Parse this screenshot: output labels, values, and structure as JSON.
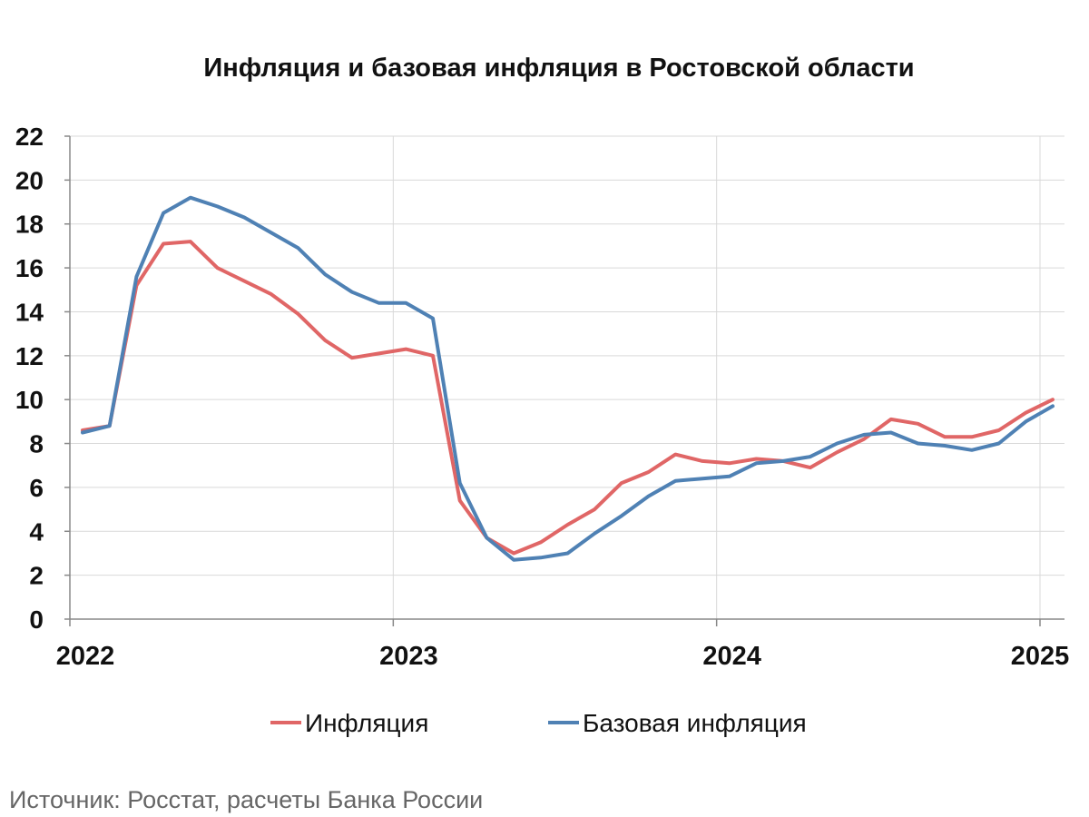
{
  "chart_data": {
    "type": "line",
    "title": "Инфляция и базовая инфляция в Ростовской области",
    "xlabel": "",
    "ylabel": "",
    "ylim": [
      0,
      22
    ],
    "yticks": [
      "0",
      "2",
      "4",
      "6",
      "8",
      "10",
      "12",
      "14",
      "16",
      "18",
      "20",
      "22"
    ],
    "xticks": [
      "2022",
      "2023",
      "2024",
      "2025"
    ],
    "x": [
      "2022-01",
      "2022-02",
      "2022-03",
      "2022-04",
      "2022-05",
      "2022-06",
      "2022-07",
      "2022-08",
      "2022-09",
      "2022-10",
      "2022-11",
      "2022-12",
      "2023-01",
      "2023-02",
      "2023-03",
      "2023-04",
      "2023-05",
      "2023-06",
      "2023-07",
      "2023-08",
      "2023-09",
      "2023-10",
      "2023-11",
      "2023-12",
      "2024-01",
      "2024-02",
      "2024-03",
      "2024-04",
      "2024-05",
      "2024-06",
      "2024-07",
      "2024-08",
      "2024-09",
      "2024-10",
      "2024-11",
      "2024-12",
      "2025-01"
    ],
    "series": [
      {
        "name": "Инфляция",
        "color": "#e06666",
        "values": [
          8.6,
          8.8,
          15.2,
          17.1,
          17.2,
          16.0,
          15.4,
          14.8,
          13.9,
          12.7,
          11.9,
          12.1,
          12.3,
          12.0,
          5.4,
          3.7,
          3.0,
          3.5,
          4.3,
          5.0,
          6.2,
          6.7,
          7.5,
          7.2,
          7.1,
          7.3,
          7.2,
          6.9,
          7.6,
          8.2,
          9.1,
          8.9,
          8.3,
          8.3,
          8.6,
          9.4,
          10.0
        ]
      },
      {
        "name": "Базовая инфляция",
        "color": "#4f81b4",
        "values": [
          8.5,
          8.8,
          15.6,
          18.5,
          19.2,
          18.8,
          18.3,
          17.6,
          16.9,
          15.7,
          14.9,
          14.4,
          14.4,
          13.7,
          6.2,
          3.7,
          2.7,
          2.8,
          3.0,
          3.9,
          4.7,
          5.6,
          6.3,
          6.4,
          6.5,
          7.1,
          7.2,
          7.4,
          8.0,
          8.4,
          8.5,
          8.0,
          7.9,
          7.7,
          8.0,
          9.0,
          9.7
        ]
      }
    ],
    "legend": "bottom",
    "grid": true,
    "source": "Источник: Росстат, расчеты Банка России"
  }
}
